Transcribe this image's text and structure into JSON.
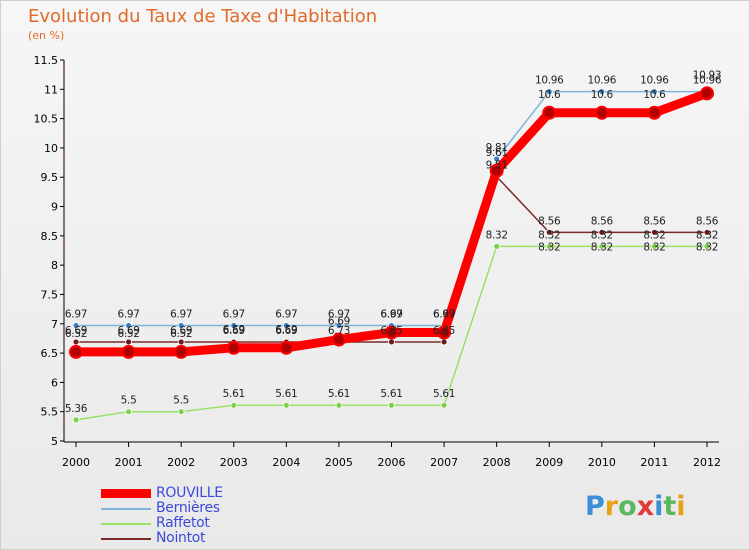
{
  "title": "Evolution du Taux de Taxe d'Habitation",
  "subtitle": "(en %)",
  "logo_text": "Proxiti",
  "chart_data": {
    "type": "line",
    "title": "Evolution du Taux de Taxe d'Habitation",
    "ylabel": "(en %)",
    "xlabel": "",
    "categories": [
      "2000",
      "2001",
      "2002",
      "2003",
      "2004",
      "2005",
      "2006",
      "2007",
      "2008",
      "2009",
      "2010",
      "2011",
      "2012"
    ],
    "ylim": [
      5,
      11.5
    ],
    "yticks": [
      "5",
      "5.5",
      "6",
      "6.5",
      "7",
      "7.5",
      "8",
      "8.5",
      "9",
      "9.5",
      "10",
      "10.5",
      "11",
      "11.5"
    ],
    "grid": false,
    "legend": "bottom-left",
    "series": [
      {
        "name": "ROUVILLE",
        "color": "#ff0000",
        "values": [
          6.52,
          6.52,
          6.52,
          6.59,
          6.59,
          6.73,
          6.85,
          6.85,
          9.61,
          10.6,
          10.6,
          10.6,
          10.93
        ]
      },
      {
        "name": "Bernières",
        "color": "#7fb4d9",
        "values": [
          6.97,
          6.97,
          6.97,
          6.97,
          6.97,
          6.97,
          6.97,
          6.97,
          9.81,
          10.96,
          10.96,
          10.96,
          10.96
        ]
      },
      {
        "name": "Raffetot",
        "color": "#99e066",
        "values": [
          5.36,
          5.5,
          5.5,
          5.61,
          5.61,
          5.61,
          5.61,
          5.61,
          8.32,
          8.32,
          8.32,
          8.32,
          8.32
        ]
      },
      {
        "name": "Nointot",
        "color": "#7a2b2b",
        "values": [
          6.69,
          6.69,
          6.69,
          6.69,
          6.69,
          6.69,
          6.69,
          6.69,
          9.51,
          8.56,
          8.56,
          8.56,
          8.56
        ]
      }
    ],
    "labels_below": [
      [
        "6.52",
        "6.52",
        "6.52",
        "6.59",
        "6.59",
        "6.69",
        "6.69",
        "6.69",
        "9.61",
        "10.6",
        "10.6",
        "10.6",
        "10.93"
      ],
      [
        "6.69",
        "6.69",
        "6.69",
        "6.69",
        "6.69",
        "6.73",
        "6.85",
        "6.85",
        "9.51",
        "8.32",
        "8.32",
        "8.32",
        "8.32"
      ]
    ]
  },
  "colors": {
    "title": "#e06a2a",
    "legend_text": "#3b4bd9"
  }
}
